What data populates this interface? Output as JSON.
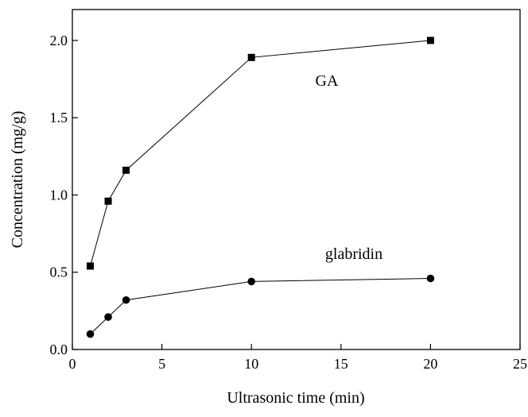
{
  "chart_data": {
    "type": "line",
    "x_label": "Ultrasonic time (min)",
    "y_label": "Concentration (mg/g)",
    "xlim": [
      0,
      25
    ],
    "xticks": [
      0,
      5,
      10,
      15,
      20,
      25
    ],
    "ylim": [
      0,
      2.2
    ],
    "yticks": [
      {
        "value": 0,
        "label": "0.0"
      },
      {
        "value": 0.5,
        "label": "0.5"
      },
      {
        "value": 1,
        "label": "1.0"
      },
      {
        "value": 1.5,
        "label": "1.5"
      },
      {
        "value": 2,
        "label": "2.0"
      }
    ],
    "x": [
      1,
      2,
      3,
      10,
      20
    ],
    "series": [
      {
        "name": "GA",
        "color": "#000000",
        "marker": "square",
        "values": [
          0.54,
          0.96,
          1.16,
          1.89,
          2.0
        ]
      },
      {
        "name": "glabridin",
        "color": "#000000",
        "marker": "circle",
        "values": [
          0.1,
          0.21,
          0.32,
          0.44,
          0.46
        ]
      }
    ]
  }
}
